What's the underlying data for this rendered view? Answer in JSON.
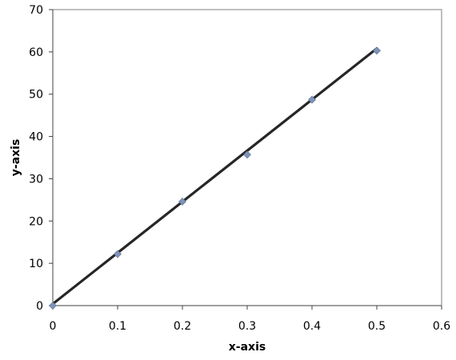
{
  "chart_data": {
    "type": "scatter",
    "title": "",
    "xlabel": "x-axis",
    "ylabel": "y-axis",
    "xlim": [
      0,
      0.6
    ],
    "ylim": [
      0,
      70
    ],
    "x_ticks": [
      0,
      0.1,
      0.2,
      0.3,
      0.4,
      0.5,
      0.6
    ],
    "y_ticks": [
      0,
      10,
      20,
      30,
      40,
      50,
      60,
      70
    ],
    "x_tick_labels": [
      "0",
      "0.1",
      "0.2",
      "0.3",
      "0.4",
      "0.5",
      "0.6"
    ],
    "y_tick_labels": [
      "0",
      "10",
      "20",
      "30",
      "40",
      "50",
      "60",
      "70"
    ],
    "grid": false,
    "legend": "none",
    "series": [
      {
        "marker": "diamond",
        "color": "#7f93b8",
        "x": [
          0,
          0.1,
          0.2,
          0.3,
          0.4,
          0.5
        ],
        "y": [
          0,
          12.2,
          24.6,
          35.7,
          48.7,
          60.3
        ]
      }
    ],
    "trendline": {
      "type": "linear",
      "color": "#262626",
      "x": [
        0,
        0.5
      ],
      "y": [
        0.4,
        60.8
      ]
    }
  }
}
